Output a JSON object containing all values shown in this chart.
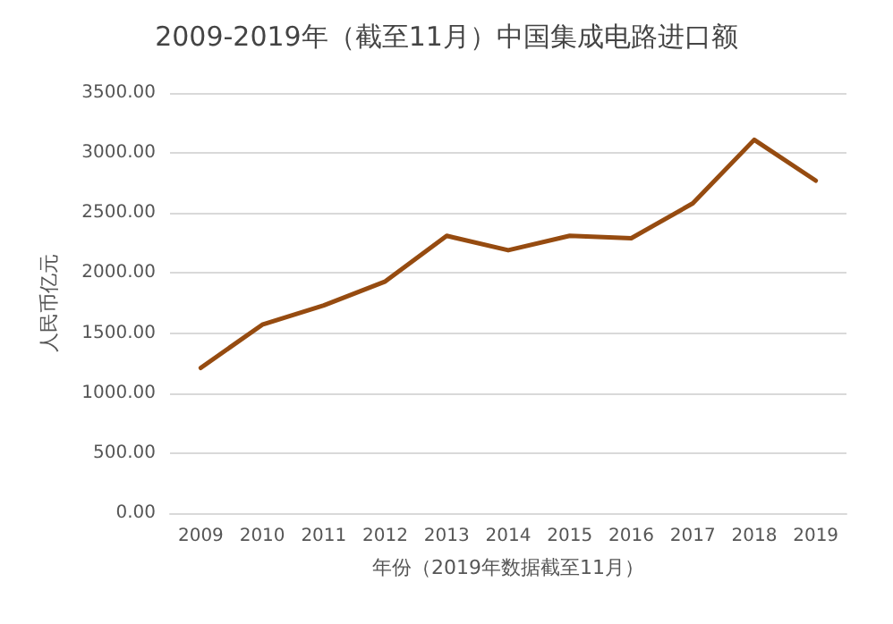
{
  "chart_data": {
    "type": "line",
    "title": "2009-2019年（截至11月）中国集成电路进口额",
    "xlabel": "年份（2019年数据截至11月）",
    "ylabel": "人民币亿元",
    "categories": [
      "2009",
      "2010",
      "2011",
      "2012",
      "2013",
      "2014",
      "2015",
      "2016",
      "2017",
      "2018",
      "2019"
    ],
    "series": [
      {
        "color": "#964b10",
        "values": [
          1210,
          1570,
          1730,
          1930,
          2310,
          2190,
          2310,
          2290,
          2580,
          3110,
          2770
        ]
      }
    ],
    "ylim": [
      0,
      3500
    ],
    "yticks": [
      {
        "value": 0,
        "label": "0.00"
      },
      {
        "value": 500,
        "label": "500.00"
      },
      {
        "value": 1000,
        "label": "1000.00"
      },
      {
        "value": 1500,
        "label": "1500.00"
      },
      {
        "value": 2000,
        "label": "2000.00"
      },
      {
        "value": 2500,
        "label": "2500.00"
      },
      {
        "value": 3000,
        "label": "3000.00"
      },
      {
        "value": 3500,
        "label": "3500.00"
      }
    ],
    "grid": "y",
    "marker": "none",
    "line_style": "solid"
  }
}
